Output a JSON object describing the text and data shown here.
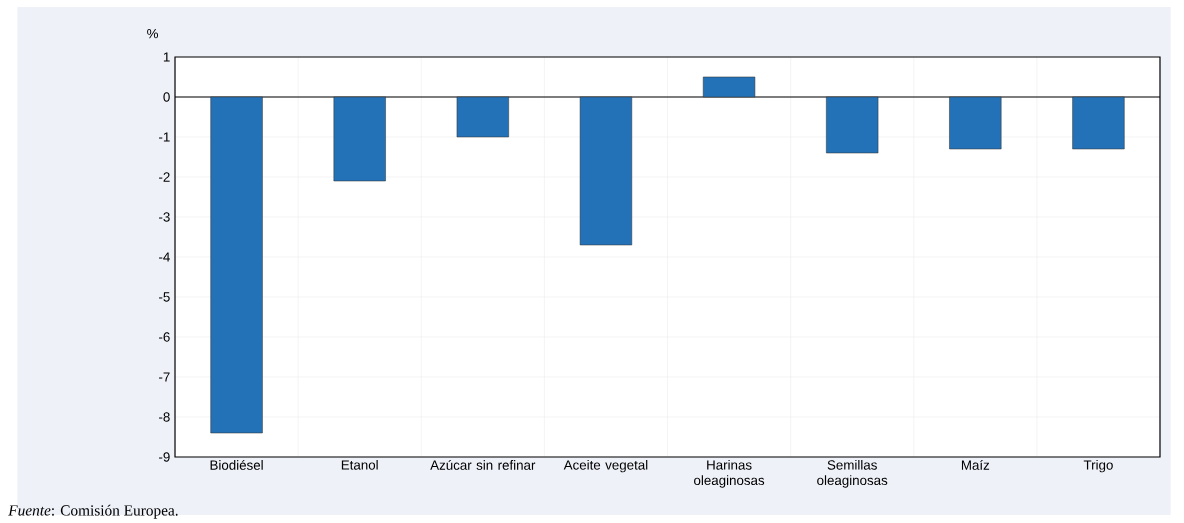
{
  "chart_data": {
    "type": "bar",
    "ylabel": "%",
    "categories": [
      "Biodiésel",
      "Etanol",
      "Azúcar sin refinar",
      "Aceite vegetal",
      "Harinas oleaginosas",
      "Semillas oleaginosas",
      "Maíz",
      "Trigo"
    ],
    "values": [
      -8.4,
      -2.1,
      -1.0,
      -3.7,
      0.5,
      -1.4,
      -1.3,
      -1.3
    ],
    "color": "#2372b8",
    "ylim": [
      -9,
      1
    ],
    "yticks": [
      -9,
      -8,
      -7,
      -6,
      -5,
      -4,
      -3,
      -2,
      -1,
      0,
      1
    ],
    "grid": true,
    "annotations": [
      "*Fuente*: Comisión Europea."
    ]
  }
}
